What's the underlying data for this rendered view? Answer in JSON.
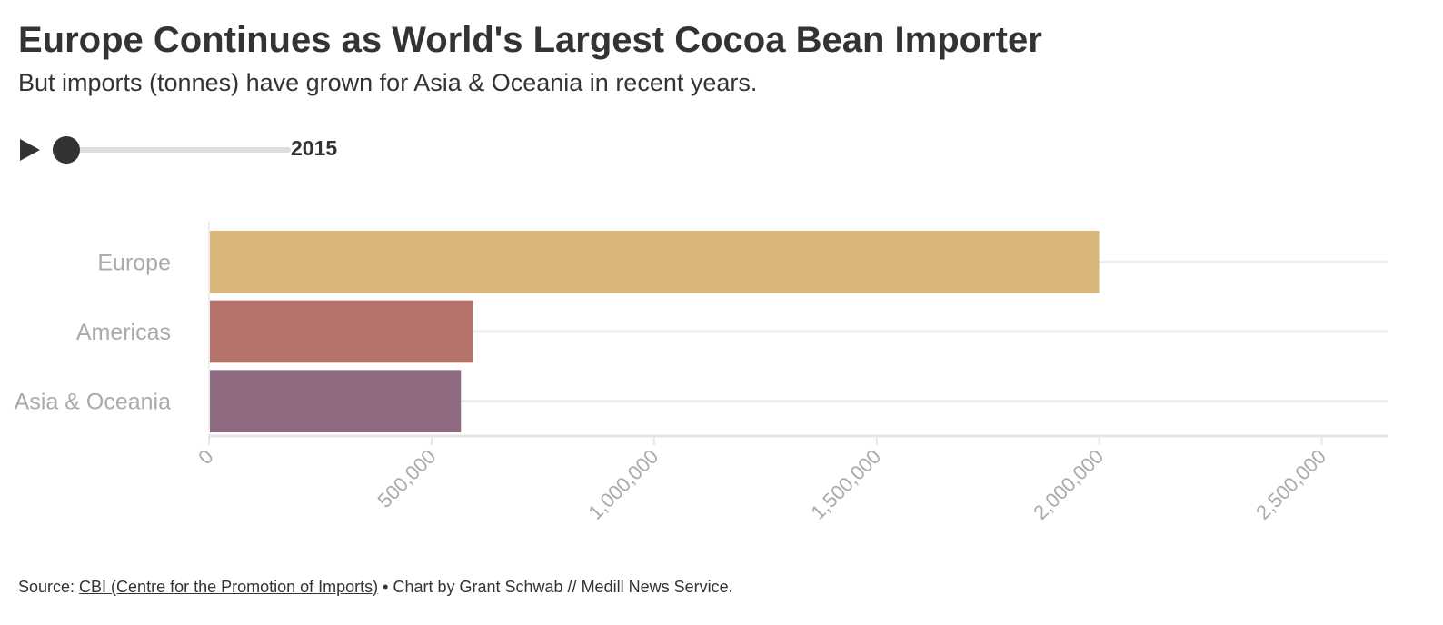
{
  "header": {
    "title": "Europe Continues as World's Largest Cocoa Bean Importer",
    "subtitle": "But imports (tonnes) have grown for Asia & Oceania in recent years."
  },
  "controls": {
    "play_icon": "play-icon",
    "year": "2015",
    "slider_position": 0
  },
  "chart_data": {
    "type": "bar",
    "orientation": "horizontal",
    "title": "",
    "xlabel": "",
    "ylabel": "",
    "categories": [
      "Europe",
      "Americas",
      "Asia & Oceania"
    ],
    "values": [
      2000000,
      593000,
      566000
    ],
    "colors": [
      "#dbb67b",
      "#b5726a",
      "#8f6b82"
    ],
    "xlim": [
      0,
      2650000
    ],
    "x_ticks": [
      0,
      500000,
      1000000,
      1500000,
      2000000,
      2500000
    ],
    "x_tick_labels": [
      "0",
      "500,000",
      "1,000,000",
      "1,500,000",
      "2,000,000",
      "2,500,000"
    ],
    "grid": true,
    "legend": "none"
  },
  "footer": {
    "source_prefix": "Source: ",
    "source_link": "CBI (Centre for the Promotion of Imports)",
    "credit": " • Chart by Grant Schwab // Medill News Service."
  }
}
